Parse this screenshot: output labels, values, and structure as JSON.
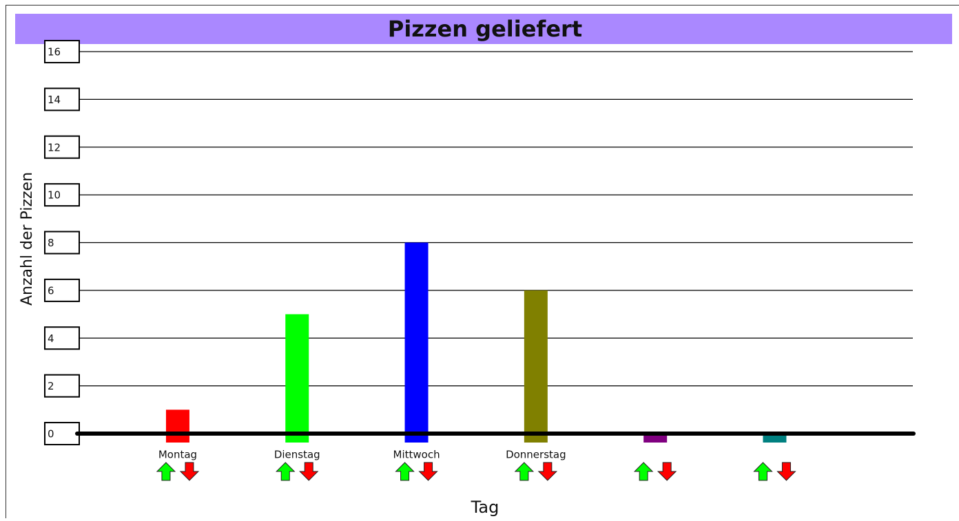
{
  "chart_data": {
    "type": "bar",
    "title": "Pizzen geliefert",
    "x_label": "Tag",
    "y_label": "Anzahl der Pizzen",
    "categories": [
      "Montag",
      "Dienstag",
      "Mittwoch",
      "Donnerstag",
      null,
      null
    ],
    "values": [
      1,
      5,
      8,
      6,
      0,
      0
    ],
    "colors": [
      "#ff0000",
      "#00ff00",
      "#0000ff",
      "#808000",
      "#800080",
      "#008080"
    ],
    "ylim": [
      0,
      16
    ],
    "yticks": [
      0,
      2,
      4,
      6,
      8,
      10,
      12,
      14,
      16
    ],
    "grid": true
  }
}
